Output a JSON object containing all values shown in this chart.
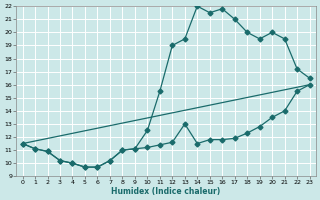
{
  "bg_color": "#cce8e8",
  "grid_color": "#ffffff",
  "line_color": "#1a6b6b",
  "xlabel": "Humidex (Indice chaleur)",
  "xlim": [
    -0.5,
    23.5
  ],
  "ylim": [
    9,
    22
  ],
  "xticks": [
    0,
    1,
    2,
    3,
    4,
    5,
    6,
    7,
    8,
    9,
    10,
    11,
    12,
    13,
    14,
    15,
    16,
    17,
    18,
    19,
    20,
    21,
    22,
    23
  ],
  "yticks": [
    9,
    10,
    11,
    12,
    13,
    14,
    15,
    16,
    17,
    18,
    19,
    20,
    21,
    22
  ],
  "line1_x": [
    0,
    1,
    2,
    3,
    4,
    5,
    6,
    7,
    8,
    9,
    10,
    11,
    12,
    13,
    14,
    15,
    16,
    17,
    18,
    19,
    20,
    21,
    22,
    23
  ],
  "line1_y": [
    11.5,
    11.1,
    10.9,
    10.2,
    10.0,
    9.7,
    9.7,
    10.2,
    11.0,
    11.1,
    11.2,
    11.4,
    11.6,
    13.0,
    11.5,
    11.8,
    11.8,
    11.9,
    12.3,
    12.8,
    13.5,
    14.0,
    15.5,
    16.0
  ],
  "line2_x": [
    0,
    1,
    2,
    3,
    4,
    5,
    6,
    7,
    8,
    9,
    10,
    11,
    12,
    13,
    14,
    15,
    16,
    17,
    18,
    19,
    20,
    21,
    22,
    23
  ],
  "line2_y": [
    11.5,
    11.1,
    10.9,
    10.2,
    10.0,
    9.7,
    9.7,
    10.2,
    11.0,
    11.1,
    12.5,
    15.5,
    19.0,
    19.5,
    22.0,
    21.5,
    21.8,
    21.0,
    20.0,
    19.5,
    20.0,
    19.5,
    17.2,
    16.5
  ],
  "line3_x": [
    0,
    23
  ],
  "line3_y": [
    11.5,
    16.0
  ]
}
